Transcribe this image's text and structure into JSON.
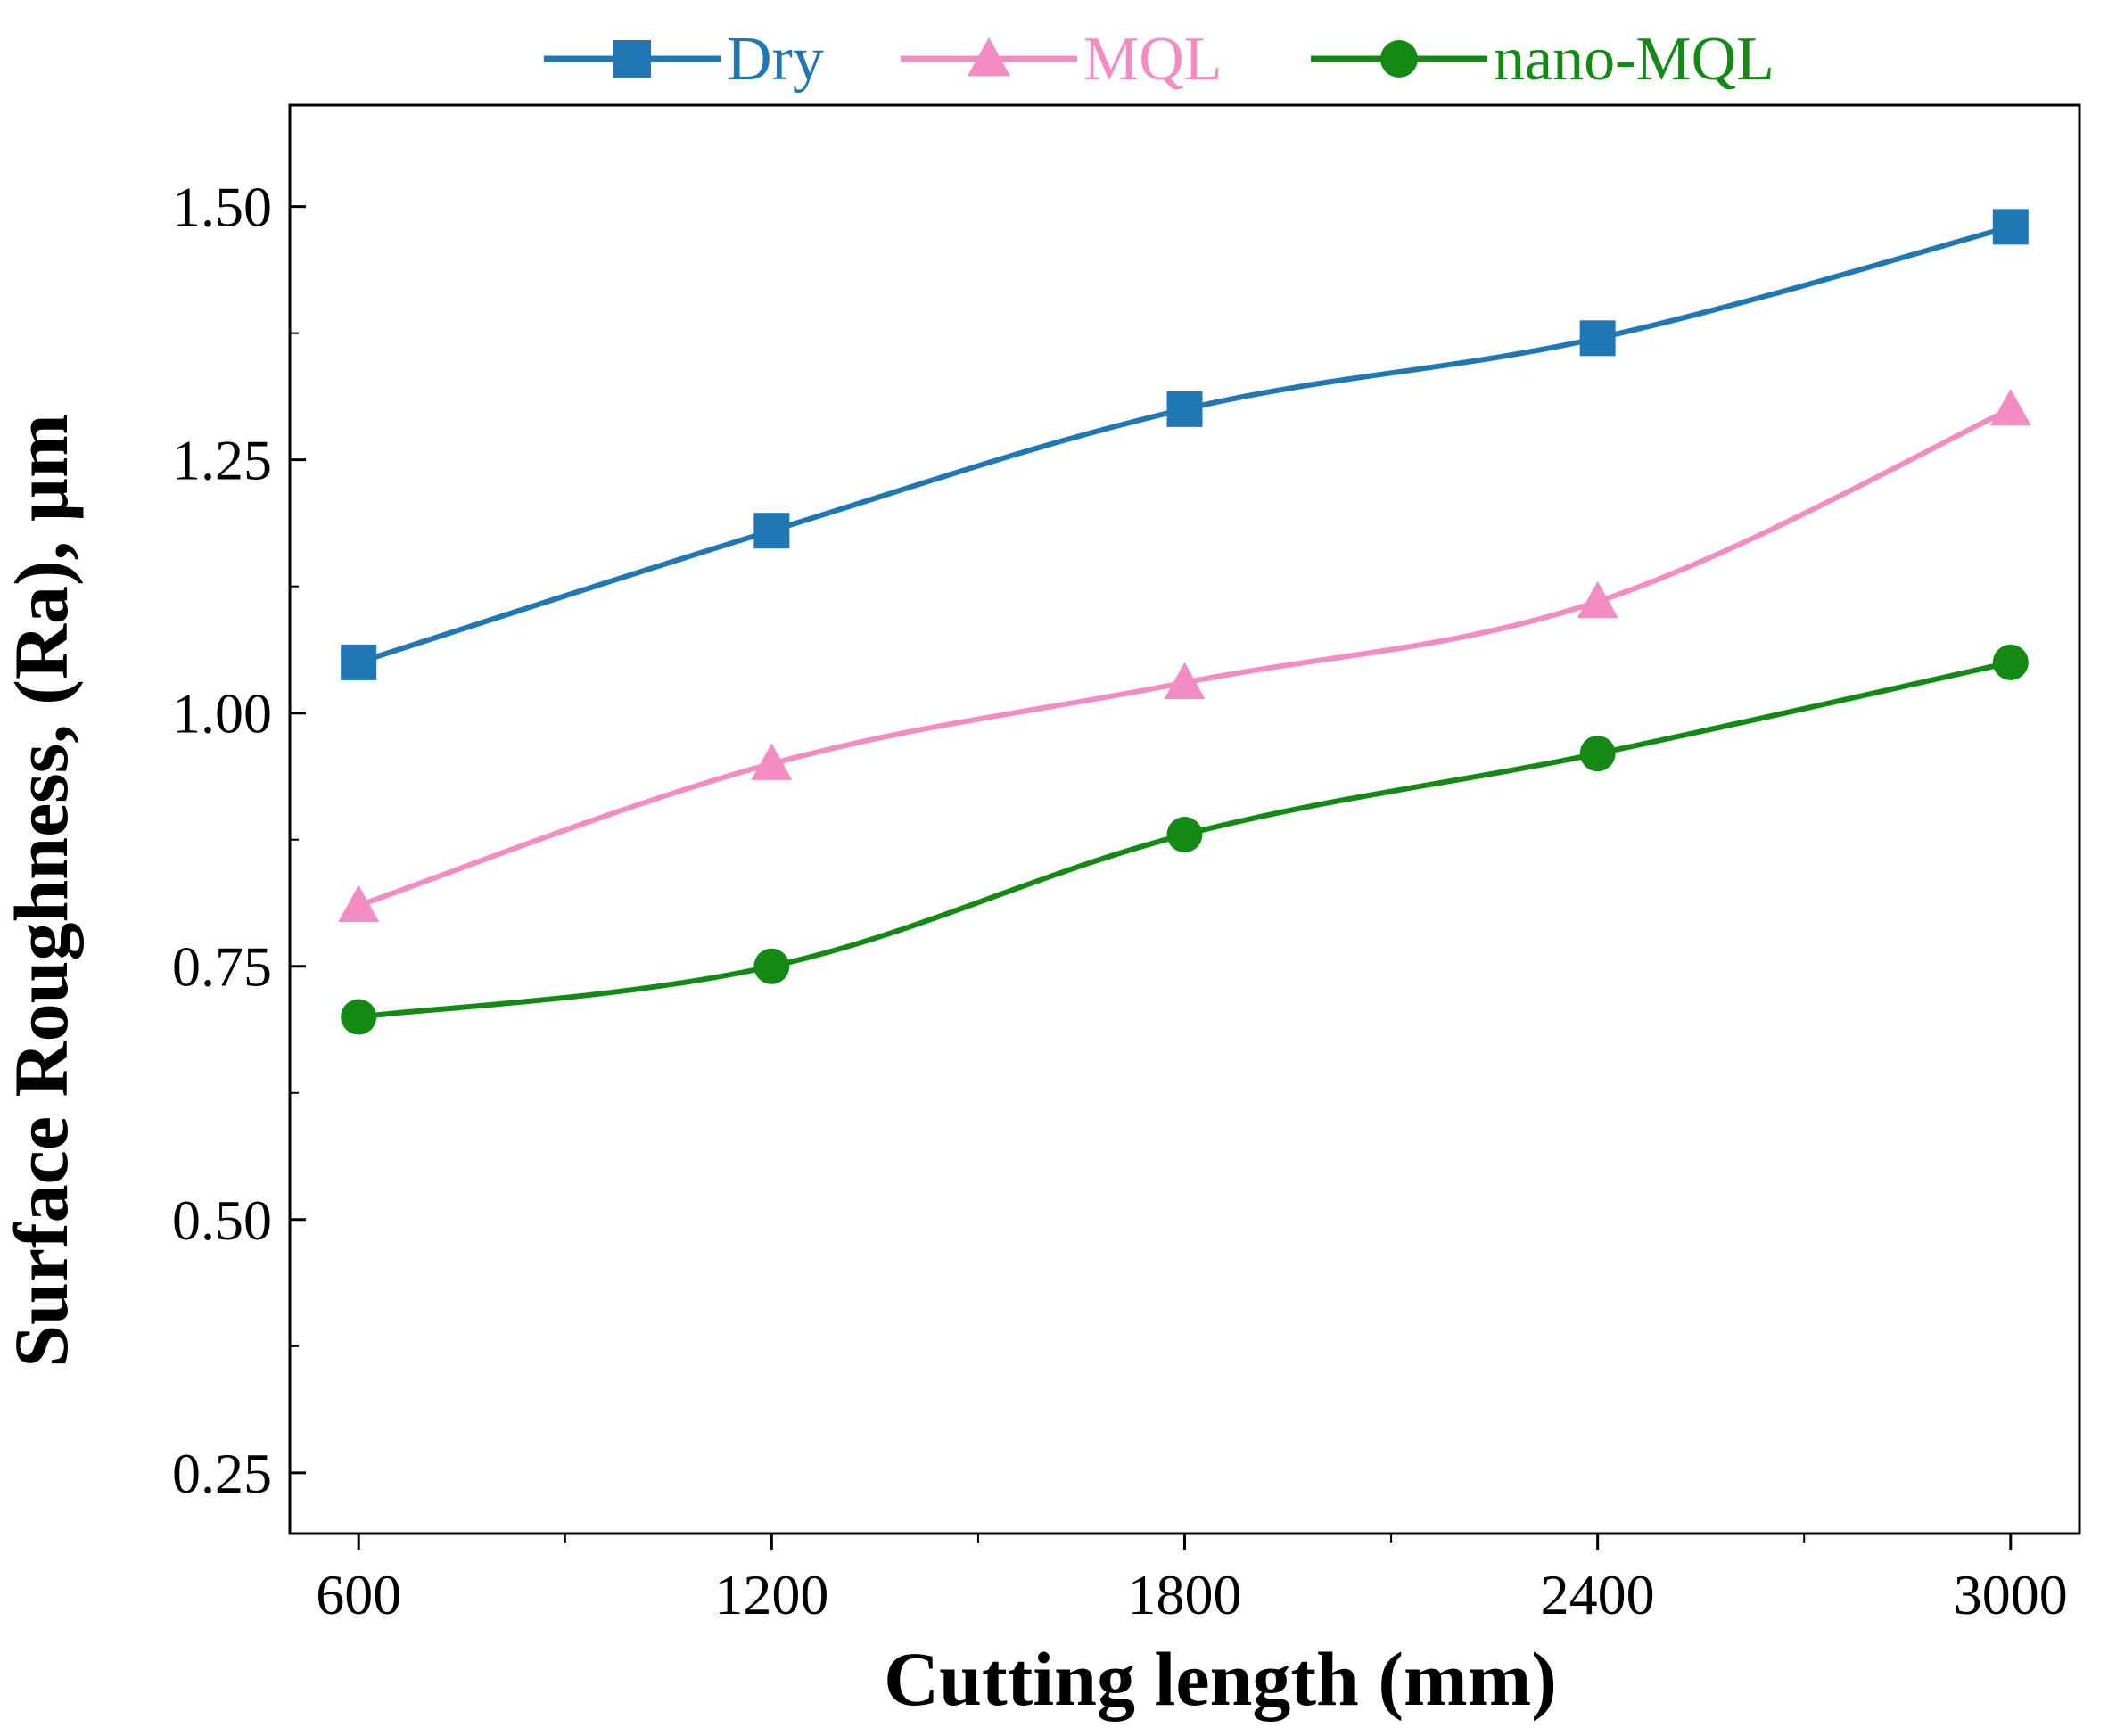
{
  "chart_data": {
    "type": "line",
    "title": "",
    "xlabel": "Cutting length (mm)",
    "ylabel": "Surface Roughness, (Ra), µm",
    "x": [
      600,
      1200,
      1800,
      2400,
      3000
    ],
    "xlim": [
      500,
      3100
    ],
    "ylim": [
      0.19,
      1.6
    ],
    "x_ticks": [
      600,
      1200,
      1800,
      2400,
      3000
    ],
    "x_tick_labels": [
      "600",
      "1200",
      "1800",
      "2400",
      "3000"
    ],
    "x_minor_ticks": [
      900,
      1500,
      2100,
      2700
    ],
    "y_ticks": [
      0.25,
      0.5,
      0.75,
      1.0,
      1.25,
      1.5
    ],
    "y_tick_labels": [
      "0.25",
      "0.50",
      "0.75",
      "1.00",
      "1.25",
      "1.50"
    ],
    "y_minor_ticks": [
      0.375,
      0.625,
      0.875,
      1.125,
      1.375
    ],
    "legend_position": "top",
    "grid": false,
    "series": [
      {
        "name": "Dry",
        "color": "#1f77b4",
        "marker": "square",
        "values": [
          1.05,
          1.18,
          1.3,
          1.37,
          1.48
        ]
      },
      {
        "name": "MQL",
        "color": "#f48cc4",
        "marker": "triangle",
        "values": [
          0.81,
          0.95,
          1.03,
          1.11,
          1.3
        ]
      },
      {
        "name": "nano-MQL",
        "color": "#138a13",
        "marker": "circle",
        "values": [
          0.7,
          0.75,
          0.88,
          0.96,
          1.05
        ]
      }
    ]
  }
}
